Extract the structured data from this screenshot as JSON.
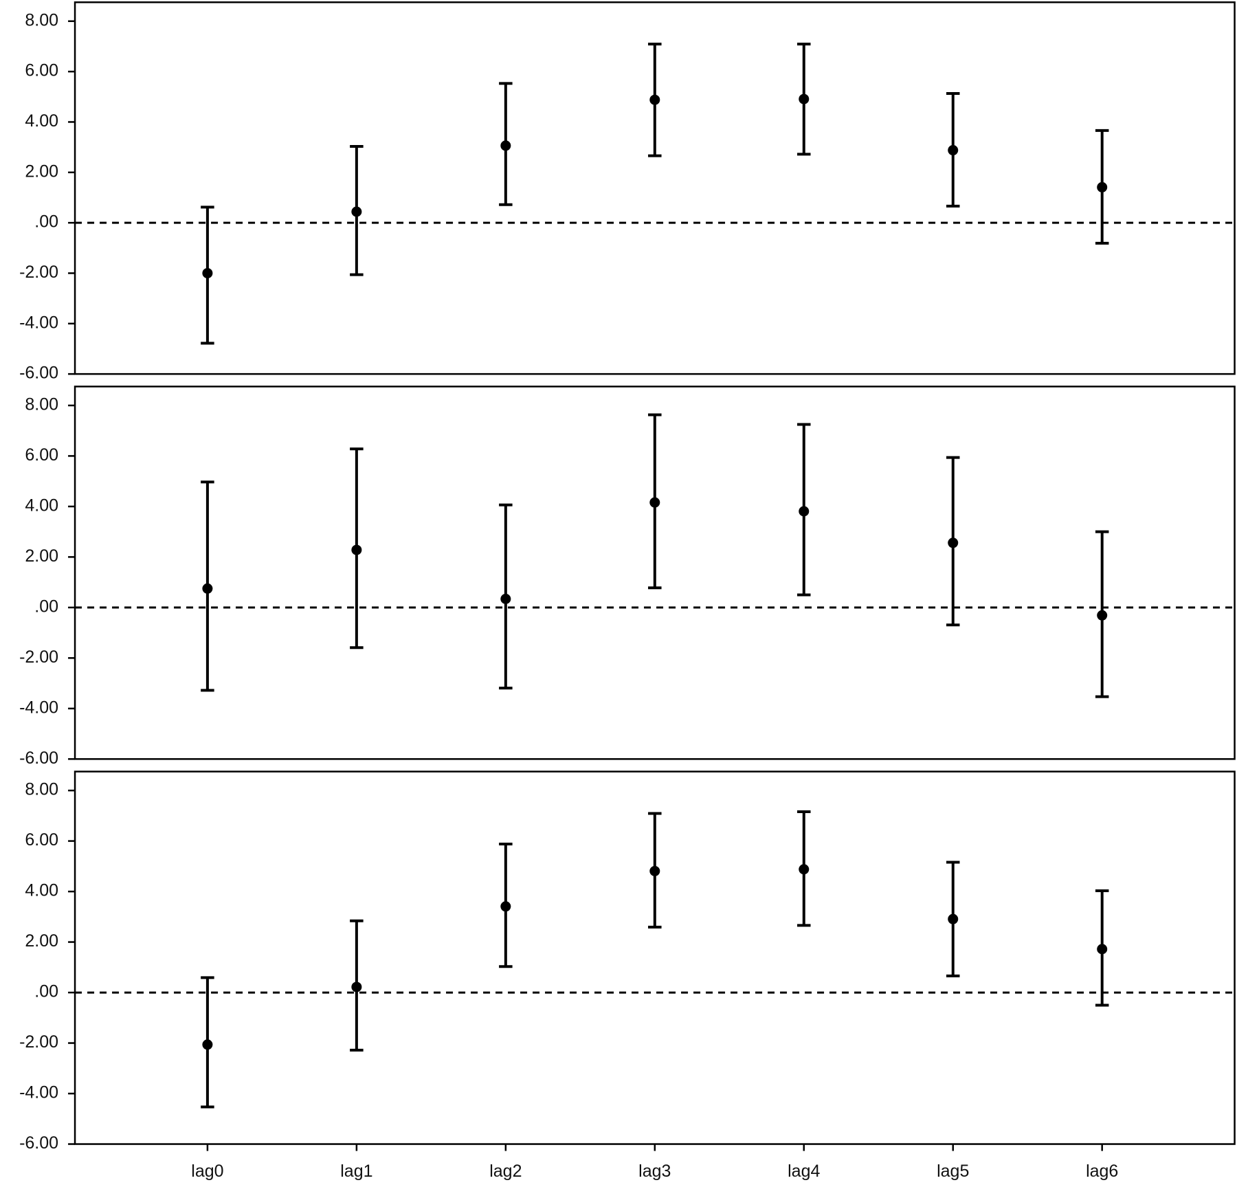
{
  "chart_data": [
    {
      "type": "errorbar",
      "values": [
        -2.0,
        0.44,
        3.06,
        4.88,
        4.91,
        2.88,
        1.41
      ],
      "lower": [
        -4.78,
        -2.06,
        0.72,
        2.66,
        2.72,
        0.66,
        -0.81
      ],
      "upper": [
        0.62,
        3.03,
        5.53,
        7.09,
        7.09,
        5.13,
        3.66
      ],
      "color": "#000000",
      "ylim": [
        -6,
        8.75
      ],
      "yticks": [
        {
          "value": -6,
          "label": "-6.00"
        },
        {
          "value": -4,
          "label": "-4.00"
        },
        {
          "value": -2,
          "label": "-2.00"
        },
        {
          "value": 0,
          "label": ".00"
        },
        {
          "value": 2,
          "label": "2.00"
        },
        {
          "value": 4,
          "label": "4.00"
        },
        {
          "value": 6,
          "label": "6.00"
        },
        {
          "value": 8,
          "label": "8.00"
        }
      ],
      "reference_line": {
        "value": 0,
        "style": "dashed"
      }
    },
    {
      "type": "errorbar",
      "values": [
        0.75,
        2.28,
        0.34,
        4.16,
        3.81,
        2.56,
        -0.31
      ],
      "lower": [
        -3.28,
        -1.59,
        -3.19,
        0.78,
        0.5,
        -0.69,
        -3.53
      ],
      "upper": [
        4.97,
        6.28,
        4.06,
        7.63,
        7.25,
        5.94,
        3.0
      ],
      "color": "#000000",
      "ylim": [
        -6,
        8.75
      ],
      "yticks": [
        {
          "value": -6,
          "label": "-6.00"
        },
        {
          "value": -4,
          "label": "-4.00"
        },
        {
          "value": -2,
          "label": "-2.00"
        },
        {
          "value": 0,
          "label": ".00"
        },
        {
          "value": 2,
          "label": "2.00"
        },
        {
          "value": 4,
          "label": "4.00"
        },
        {
          "value": 6,
          "label": "6.00"
        },
        {
          "value": 8,
          "label": "8.00"
        }
      ],
      "reference_line": {
        "value": 0,
        "style": "dashed"
      }
    },
    {
      "type": "errorbar",
      "categories": [
        "lag0",
        "lag1",
        "lag2",
        "lag3",
        "lag4",
        "lag5",
        "lag6"
      ],
      "values": [
        -2.06,
        0.22,
        3.41,
        4.81,
        4.88,
        2.91,
        1.72
      ],
      "lower": [
        -4.53,
        -2.28,
        1.03,
        2.59,
        2.66,
        0.66,
        -0.5
      ],
      "upper": [
        0.59,
        2.84,
        5.88,
        7.09,
        7.16,
        5.16,
        4.03
      ],
      "color": "#000000",
      "ylim": [
        -6,
        8.75
      ],
      "yticks": [
        {
          "value": -6,
          "label": "-6.00"
        },
        {
          "value": -4,
          "label": "-4.00"
        },
        {
          "value": -2,
          "label": "-2.00"
        },
        {
          "value": 0,
          "label": ".00"
        },
        {
          "value": 2,
          "label": "2.00"
        },
        {
          "value": 4,
          "label": "4.00"
        },
        {
          "value": 6,
          "label": "6.00"
        },
        {
          "value": 8,
          "label": "8.00"
        }
      ],
      "reference_line": {
        "value": 0,
        "style": "dashed"
      }
    }
  ]
}
